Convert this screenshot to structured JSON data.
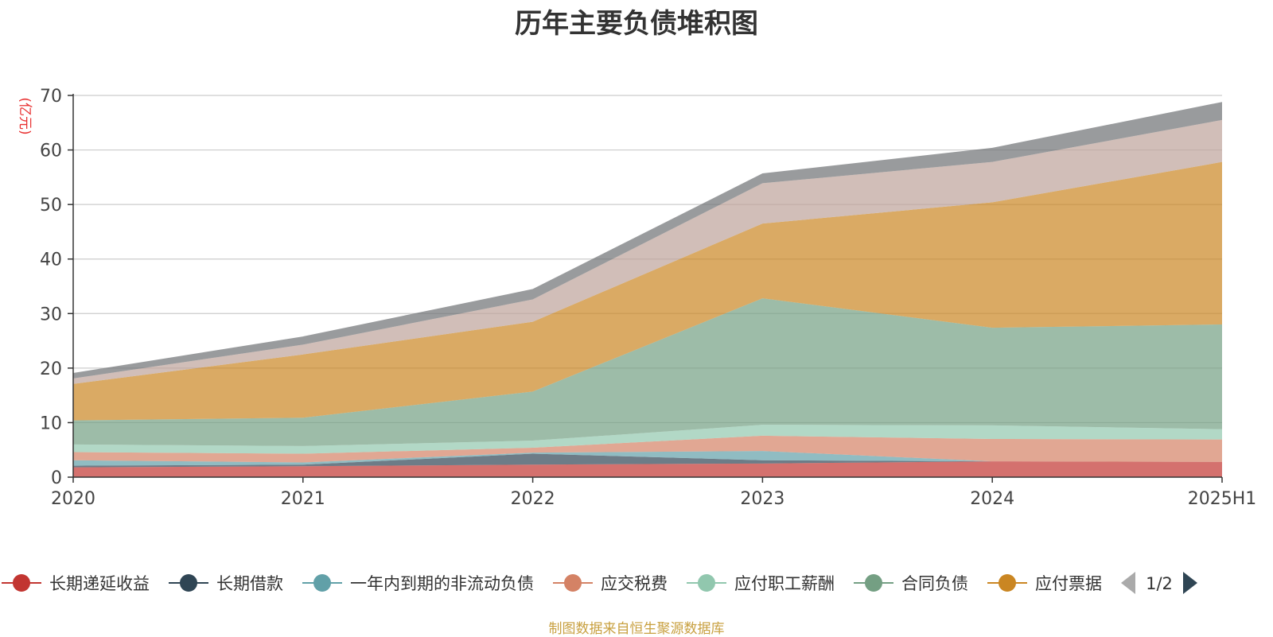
{
  "title": "历年主要负债堆积图",
  "source_note": "制图数据来自恒生聚源数据库",
  "chart_data": {
    "type": "area",
    "stacked": true,
    "title": "历年主要负债堆积图",
    "y_unit": "(亿元)",
    "categories": [
      "2020",
      "2021",
      "2022",
      "2023",
      "2024",
      "2025H1"
    ],
    "ylim": [
      0,
      70
    ],
    "yticks": [
      0,
      10,
      20,
      30,
      40,
      50,
      60,
      70
    ],
    "grid": true,
    "legend_position": "bottom",
    "legend_page": "1/2",
    "series": [
      {
        "name": "长期递延收益",
        "color": "#c23531",
        "values": [
          1.8,
          2.0,
          2.3,
          2.5,
          2.9,
          2.8
        ]
      },
      {
        "name": "长期借款",
        "color": "#2f4554",
        "values": [
          0.3,
          0.3,
          2.0,
          0.6,
          0.0,
          0.0
        ]
      },
      {
        "name": "一年内到期的非流动负债",
        "color": "#61a0a8",
        "values": [
          1.0,
          0.4,
          0.2,
          1.7,
          0.0,
          0.0
        ]
      },
      {
        "name": "应交税费",
        "color": "#d48265",
        "values": [
          1.5,
          1.6,
          0.9,
          2.8,
          4.1,
          4.1
        ]
      },
      {
        "name": "应付职工薪酬",
        "color": "#91c7ae",
        "values": [
          1.4,
          1.4,
          1.3,
          2.0,
          2.5,
          1.9
        ]
      },
      {
        "name": "合同负债",
        "color": "#749f83",
        "values": [
          4.4,
          5.2,
          9.0,
          23.2,
          17.9,
          19.2
        ]
      },
      {
        "name": "应付票据",
        "color": "#ca8622",
        "values": [
          6.7,
          11.6,
          12.8,
          13.7,
          23.0,
          29.8
        ]
      },
      {
        "name": "",
        "color": "#bda29a",
        "values": [
          1.0,
          1.8,
          4.1,
          7.4,
          7.4,
          7.7
        ]
      },
      {
        "name": "",
        "color": "#6e7074",
        "values": [
          1.0,
          1.5,
          1.9,
          1.8,
          2.6,
          3.3
        ]
      }
    ]
  }
}
